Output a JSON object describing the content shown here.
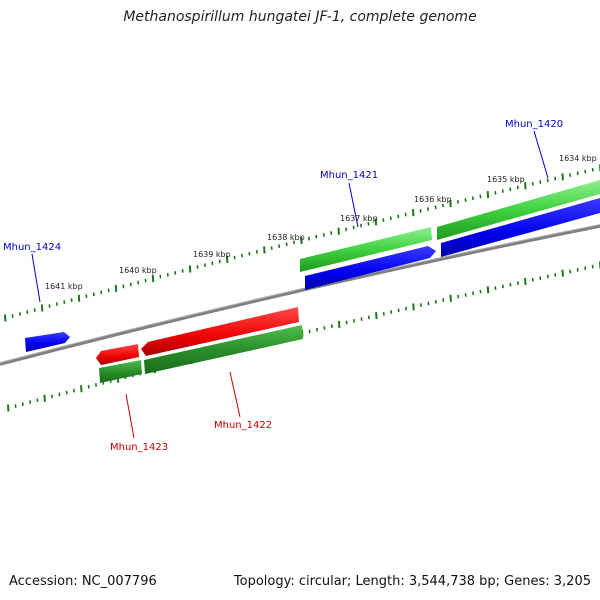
{
  "title": "Methanospirillum hungatei JF-1, complete genome",
  "footer": {
    "accession": "Accession: NC_007796",
    "topology": "Topology: circular; Length: 3,544,738 bp; Genes: 3,205"
  },
  "colors": {
    "forward_gene": "#0000ee",
    "reverse_gene": "#ee0000",
    "cds": "#33cc33",
    "backbone": "#808080",
    "ticks": "#1a7a1a",
    "forward_label": "#0000cc",
    "reverse_label": "#cc0000"
  },
  "ruler_labels": [
    {
      "text": "1634 kbp"
    },
    {
      "text": "1635 kbp"
    },
    {
      "text": "1636 kbp"
    },
    {
      "text": "1637 kbp"
    },
    {
      "text": "1638 kbp"
    },
    {
      "text": "1639 kbp"
    },
    {
      "text": "1640 kbp"
    },
    {
      "text": "1641 kbp"
    }
  ],
  "gene_labels": [
    {
      "text": "Mhun_1420",
      "strand": "forward"
    },
    {
      "text": "Mhun_1421",
      "strand": "forward"
    },
    {
      "text": "Mhun_1424",
      "strand": "forward"
    },
    {
      "text": "Mhun_1422",
      "strand": "reverse"
    },
    {
      "text": "Mhun_1423",
      "strand": "reverse"
    }
  ]
}
